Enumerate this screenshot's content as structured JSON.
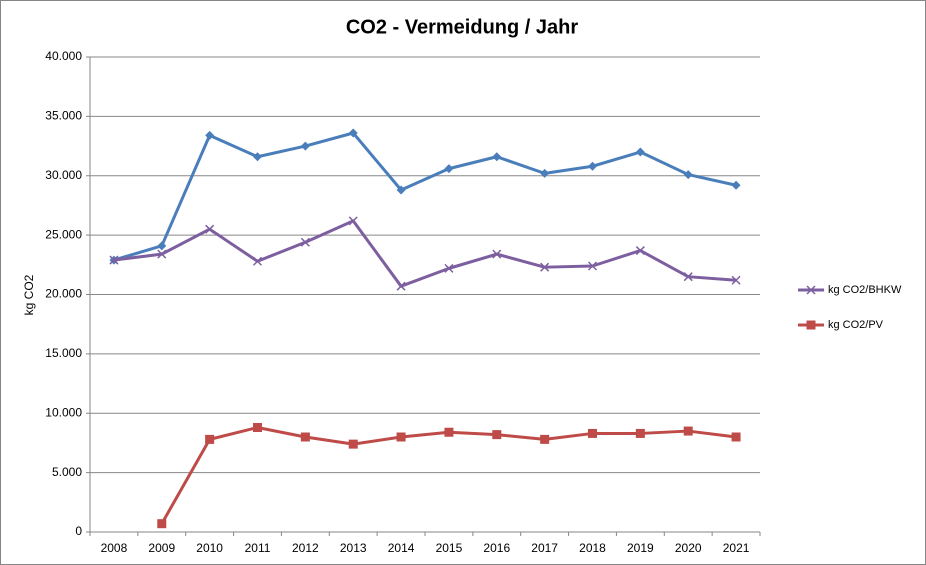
{
  "chart_data": {
    "type": "line",
    "title": "CO2 - Vermeidung / Jahr",
    "y_label": "kg CO2",
    "categories": [
      "2008",
      "2009",
      "2010",
      "2011",
      "2012",
      "2013",
      "2014",
      "2015",
      "2016",
      "2017",
      "2018",
      "2019",
      "2020",
      "2021"
    ],
    "series": [
      {
        "color": "#4a7ebb",
        "marker": "diamond",
        "values": [
          22900,
          24100,
          33400,
          31600,
          32500,
          33600,
          28800,
          30600,
          31600,
          30200,
          30800,
          32000,
          30100,
          29200
        ]
      },
      {
        "name": "kg CO2/BHKW",
        "color": "#7d5fa0",
        "marker": "x",
        "values": [
          22900,
          23400,
          25500,
          22800,
          24400,
          26200,
          20700,
          22200,
          23400,
          22300,
          22400,
          23700,
          21500,
          21200
        ]
      },
      {
        "name": "kg CO2/PV",
        "color": "#be4b48",
        "marker": "square",
        "values": [
          null,
          700,
          7800,
          8800,
          8000,
          7400,
          8000,
          8400,
          8200,
          7800,
          8300,
          8300,
          8500,
          8000
        ]
      }
    ],
    "ylim": [
      0,
      40000
    ],
    "yticks": [
      0,
      {
        "value": 5000,
        "label": "5.000"
      },
      {
        "value": 10000,
        "label": "10.000"
      },
      {
        "value": 15000,
        "label": "15.000"
      },
      {
        "value": 20000,
        "label": "20.000"
      },
      {
        "value": 25000,
        "label": "25.000"
      },
      {
        "value": 30000,
        "label": "30.000"
      },
      {
        "value": 35000,
        "label": "35.000"
      },
      {
        "value": 40000,
        "label": "40.000"
      }
    ],
    "grid": true,
    "legend": "right"
  }
}
